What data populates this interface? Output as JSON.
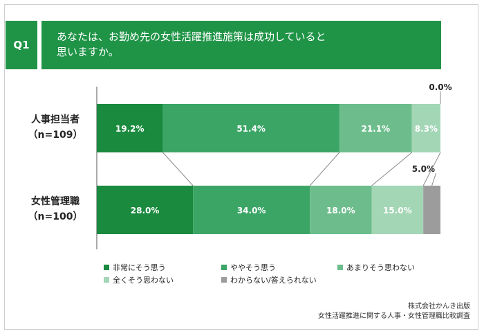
{
  "header": {
    "q_label": "Q1",
    "title_line1": "あなたは、お勤め先の女性活躍推進施策は成功していると",
    "title_line2": "思いますか。"
  },
  "chart_data": {
    "type": "bar",
    "orientation": "horizontal-stacked-100",
    "categories": [
      {
        "label": "人事担当者",
        "sublabel": "（n=109）"
      },
      {
        "label": "女性管理職",
        "sublabel": "（n=100）"
      }
    ],
    "series": [
      {
        "name": "非常にそう思う",
        "color": "#1a8a3e",
        "values": [
          19.2,
          28.0
        ],
        "labels": [
          "19.2%",
          "28.0%"
        ]
      },
      {
        "name": "ややそう思う",
        "color": "#3ba566",
        "values": [
          51.4,
          34.0
        ],
        "labels": [
          "51.4%",
          "34.0%"
        ]
      },
      {
        "name": "あまりそう思わない",
        "color": "#6dbd8c",
        "values": [
          21.1,
          18.0
        ],
        "labels": [
          "21.1%",
          "18.0%"
        ]
      },
      {
        "name": "全くそう思わない",
        "color": "#a3d6b5",
        "values": [
          8.3,
          15.0
        ],
        "labels": [
          "8.3%",
          "15.0%"
        ]
      },
      {
        "name": "わからない/答えられない",
        "color": "#9c9c9c",
        "values": [
          0.0,
          5.0
        ],
        "labels": [
          "0.0%",
          "5.0%"
        ]
      }
    ],
    "xlim": [
      0,
      100
    ],
    "legend_position": "bottom"
  },
  "source": {
    "line1": "株式会社かんき出版",
    "line2": "女性活躍推進に関する人事・女性管理職比較調査"
  }
}
